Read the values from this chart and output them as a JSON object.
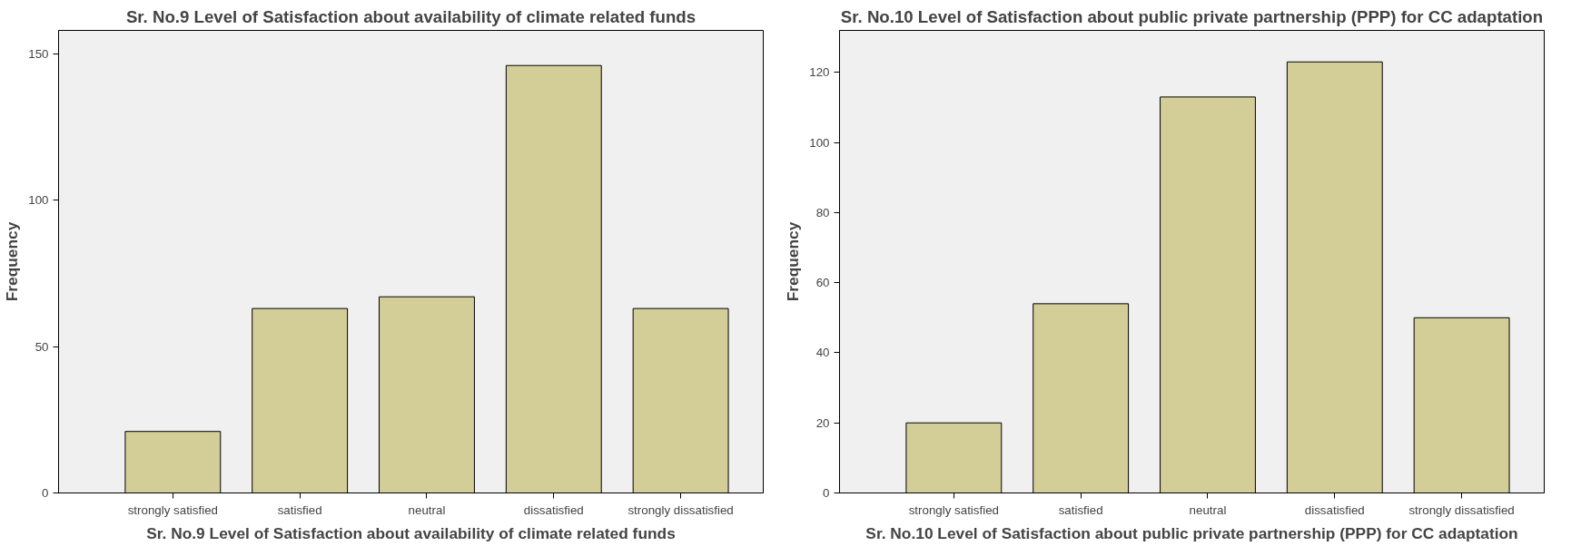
{
  "chart_data": [
    {
      "type": "bar",
      "title": "Sr. No.9 Level of Satisfaction about availability of climate related funds",
      "xlabel": "Sr. No.9 Level of Satisfaction about availability of climate related funds",
      "ylabel": "Frequency",
      "categories": [
        "strongly satisfied",
        "satisfied",
        "neutral",
        "dissatisfied",
        "strongly dissatisfied"
      ],
      "values": [
        21,
        63,
        67,
        146,
        63
      ],
      "color": "#d3ce98",
      "ylim": [
        0,
        158
      ],
      "yticks": [
        0,
        50,
        100,
        150
      ],
      "grid": false
    },
    {
      "type": "bar",
      "title": "Sr. No.10 Level of Satisfaction about public private partnership (PPP) for CC adaptation",
      "xlabel": "Sr. No.10 Level of Satisfaction about public private partnership (PPP) for CC adaptation",
      "ylabel": "Frequency",
      "categories": [
        "strongly satisfied",
        "satisfied",
        "neutral",
        "dissatisfied",
        "strongly dissatisfied"
      ],
      "values": [
        20,
        54,
        113,
        123,
        50
      ],
      "color": "#d3ce98",
      "ylim": [
        0,
        132
      ],
      "yticks": [
        0,
        20,
        40,
        60,
        80,
        100,
        120
      ],
      "grid": false
    }
  ]
}
